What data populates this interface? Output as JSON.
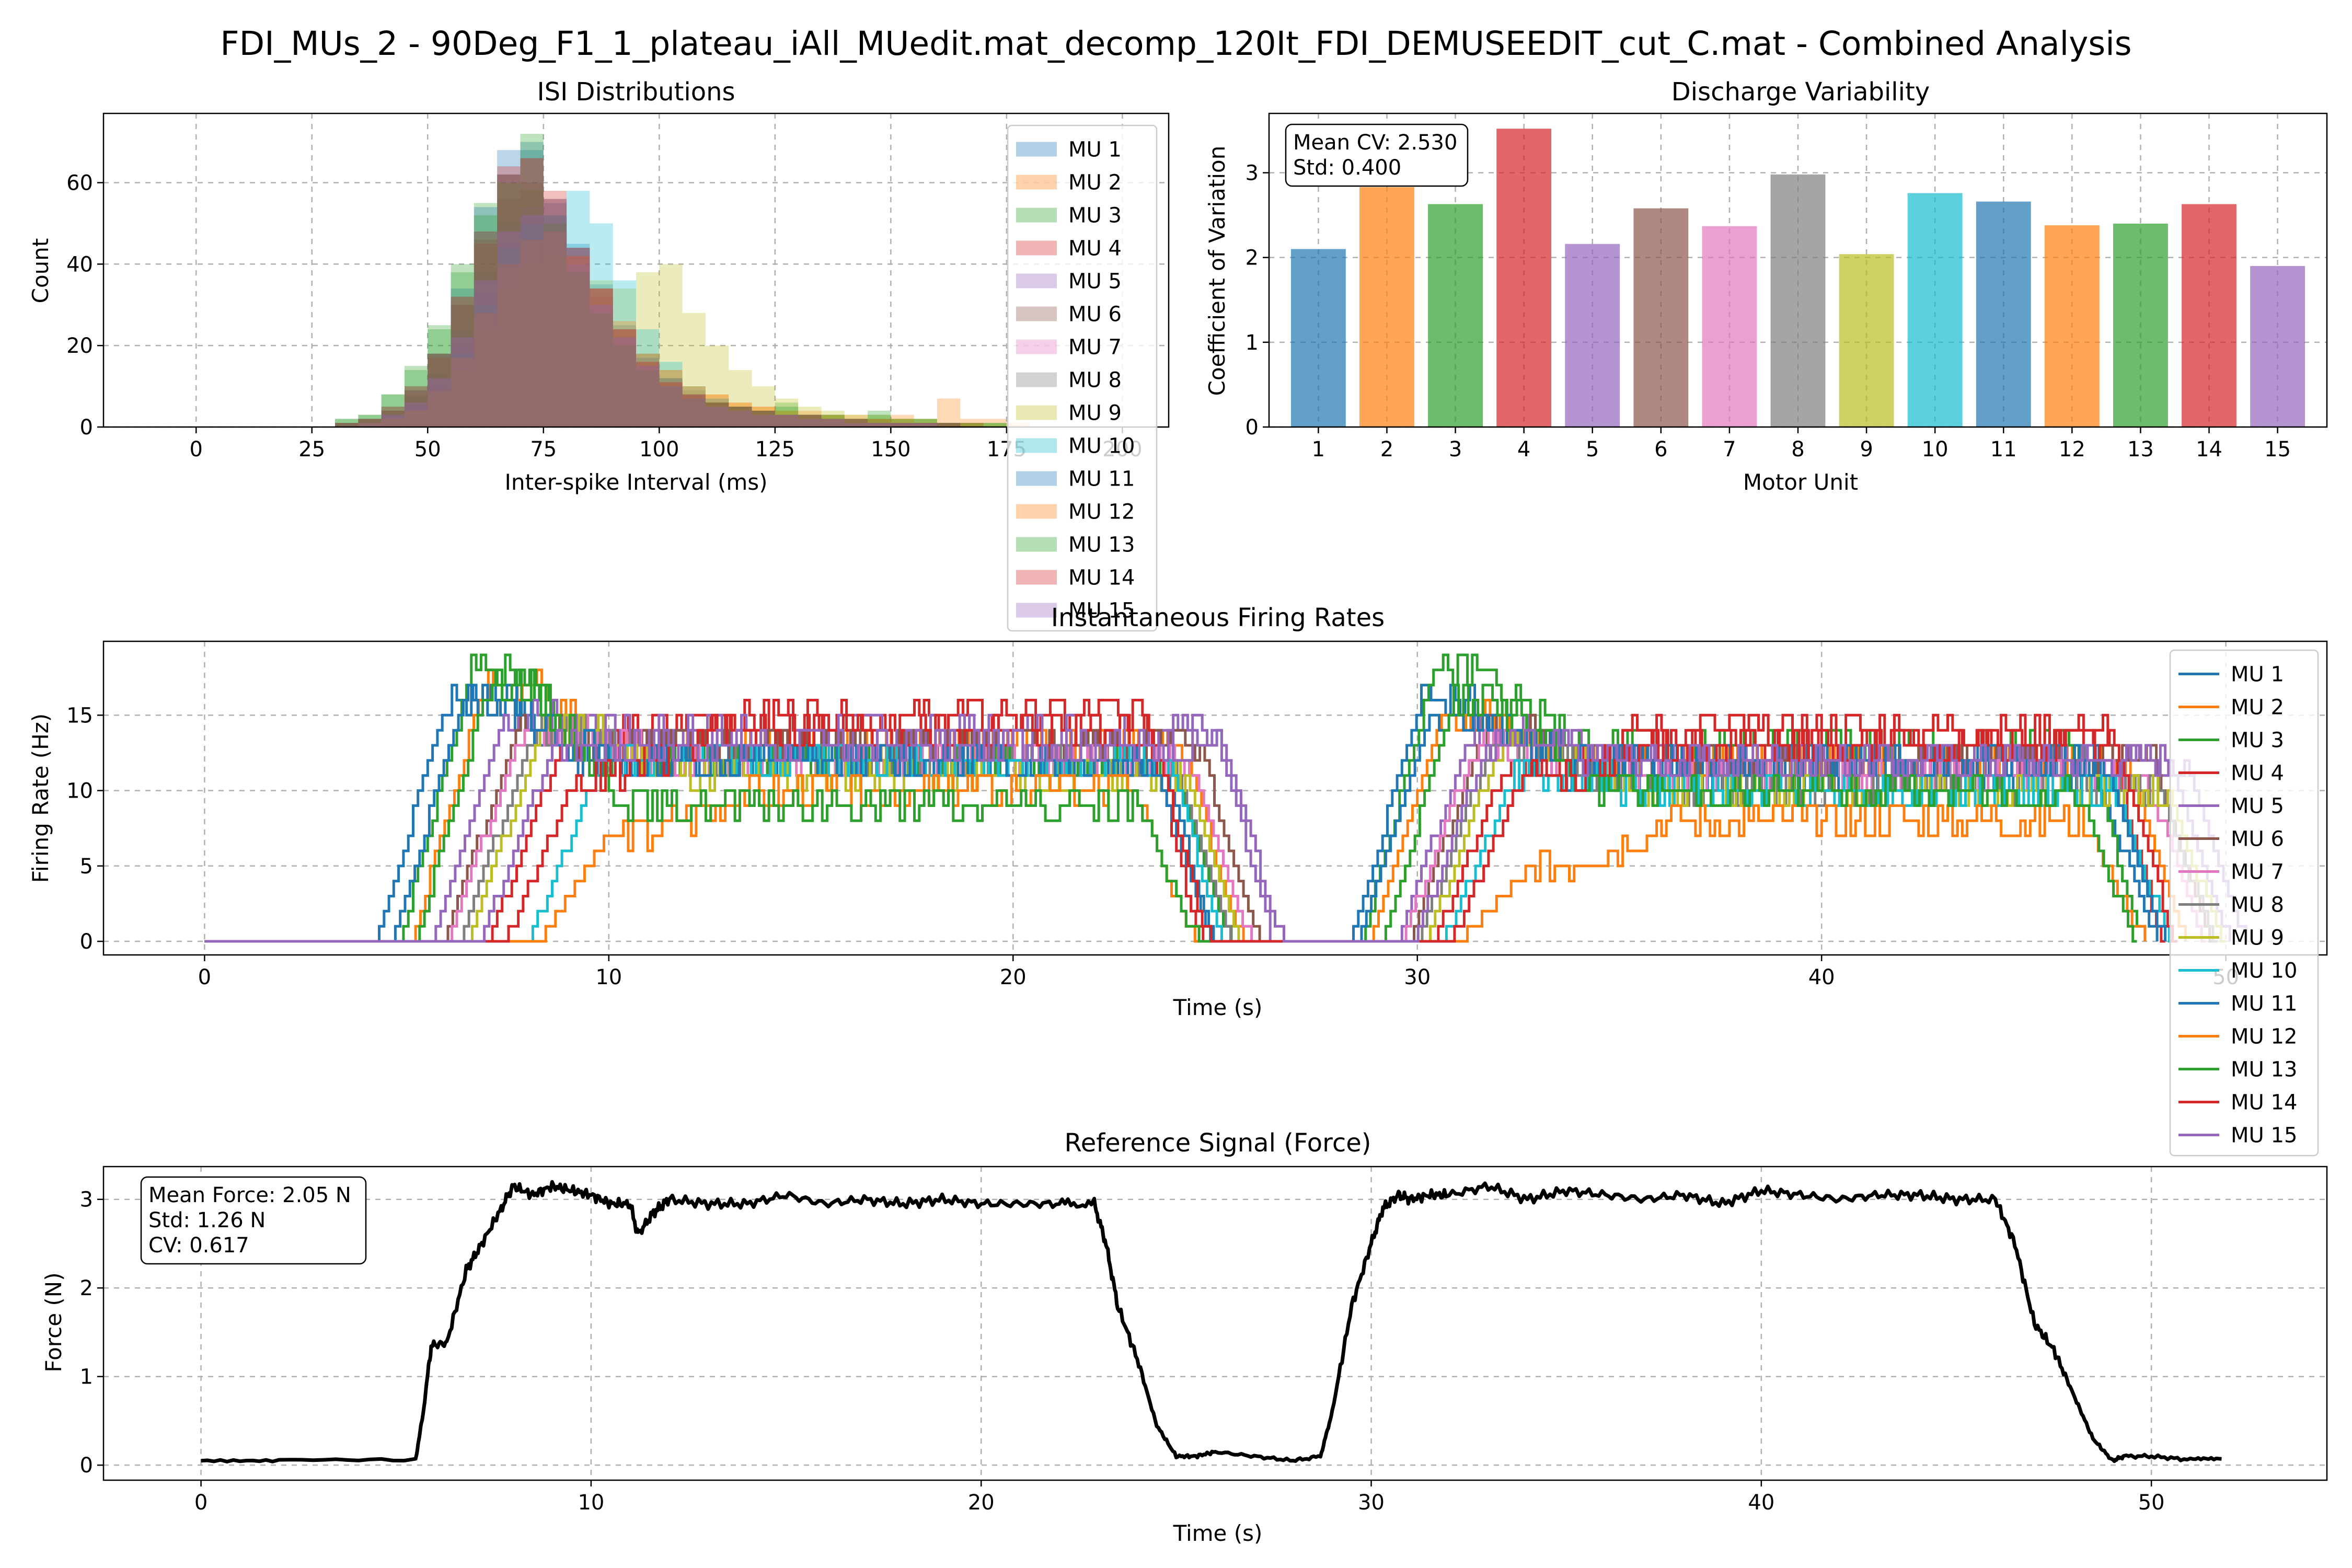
{
  "figure": {
    "suptitle": "FDI_MUs_2 - 90Deg_F1_1_plateau_iAll_MUedit.mat_decomp_120It_FDI_DEMUSEEDIT_cut_C.mat - Combined Analysis"
  },
  "colors": {
    "palette": [
      "#1f77b4",
      "#ff7f0e",
      "#2ca02c",
      "#d62728",
      "#9467bd",
      "#8c564b",
      "#e377c2",
      "#7f7f7f",
      "#bcbd22",
      "#17becf"
    ],
    "force_line": "#000000",
    "grid": "#b0b0b0"
  },
  "chart_data": [
    {
      "id": "isi",
      "type": "histogram",
      "title": "ISI Distributions",
      "xlabel": "Inter-spike Interval (ms)",
      "ylabel": "Count",
      "xlim": [
        -20,
        210
      ],
      "ylim": [
        0,
        77
      ],
      "xticks": [
        0,
        25,
        50,
        75,
        100,
        125,
        150,
        175,
        200
      ],
      "yticks": [
        0,
        20,
        40,
        60
      ],
      "grid": true,
      "legend_position": "upper right",
      "bin_edges": [
        30,
        35,
        40,
        45,
        50,
        55,
        60,
        65,
        70,
        75,
        80,
        85,
        90,
        95,
        100,
        105,
        110,
        115,
        120,
        125,
        130,
        135,
        140,
        145,
        150,
        155,
        160,
        165,
        170,
        175,
        180
      ],
      "series": [
        {
          "name": "MU 1",
          "counts": [
            1,
            2,
            5,
            10,
            18,
            30,
            48,
            62,
            68,
            55,
            45,
            35,
            25,
            18,
            12,
            8,
            6,
            5,
            4,
            3,
            3,
            2,
            2,
            1,
            1,
            1,
            1,
            0,
            0,
            0
          ]
        },
        {
          "name": "MU 2",
          "counts": [
            0,
            1,
            2,
            4,
            8,
            16,
            26,
            38,
            44,
            46,
            40,
            32,
            24,
            18,
            14,
            10,
            8,
            6,
            5,
            4,
            4,
            3,
            3,
            2,
            3,
            2,
            7,
            2,
            2,
            1
          ]
        },
        {
          "name": "MU 3",
          "counts": [
            2,
            3,
            8,
            15,
            25,
            40,
            55,
            62,
            58,
            45,
            35,
            26,
            18,
            13,
            10,
            7,
            6,
            5,
            4,
            6,
            3,
            3,
            2,
            3,
            2,
            2,
            1,
            1,
            1,
            0
          ]
        },
        {
          "name": "MU 4",
          "counts": [
            1,
            2,
            4,
            9,
            17,
            30,
            45,
            62,
            66,
            58,
            44,
            34,
            24,
            16,
            11,
            8,
            6,
            5,
            4,
            3,
            3,
            2,
            2,
            2,
            1,
            1,
            1,
            1,
            0,
            0
          ]
        },
        {
          "name": "MU 5",
          "counts": [
            0,
            1,
            2,
            5,
            10,
            20,
            33,
            45,
            52,
            50,
            42,
            32,
            22,
            15,
            10,
            7,
            5,
            4,
            3,
            3,
            2,
            2,
            1,
            1,
            1,
            1,
            1,
            0,
            0,
            0
          ]
        },
        {
          "name": "MU 6",
          "counts": [
            1,
            2,
            4,
            8,
            18,
            32,
            46,
            56,
            60,
            52,
            42,
            32,
            22,
            15,
            11,
            8,
            6,
            5,
            4,
            3,
            3,
            2,
            2,
            1,
            1,
            1,
            1,
            0,
            0,
            0
          ]
        },
        {
          "name": "MU 7",
          "counts": [
            0,
            1,
            3,
            6,
            12,
            22,
            36,
            48,
            54,
            50,
            42,
            32,
            22,
            15,
            10,
            7,
            5,
            4,
            3,
            3,
            2,
            2,
            2,
            1,
            1,
            1,
            0,
            0,
            0,
            0
          ]
        },
        {
          "name": "MU 8",
          "counts": [
            0,
            1,
            3,
            7,
            13,
            24,
            38,
            50,
            54,
            48,
            40,
            30,
            22,
            16,
            12,
            9,
            7,
            5,
            4,
            3,
            3,
            2,
            2,
            2,
            1,
            1,
            1,
            1,
            0,
            0
          ]
        },
        {
          "name": "MU 9",
          "counts": [
            0,
            1,
            2,
            4,
            8,
            14,
            24,
            34,
            40,
            42,
            40,
            36,
            34,
            38,
            40,
            28,
            20,
            14,
            10,
            7,
            5,
            4,
            3,
            3,
            2,
            2,
            1,
            1,
            1,
            0
          ]
        },
        {
          "name": "MU 10",
          "counts": [
            0,
            1,
            2,
            4,
            9,
            18,
            30,
            44,
            50,
            52,
            58,
            50,
            36,
            24,
            16,
            10,
            7,
            5,
            4,
            3,
            3,
            2,
            2,
            1,
            1,
            1,
            1,
            0,
            0,
            0
          ]
        },
        {
          "name": "MU 11",
          "counts": [
            1,
            2,
            4,
            9,
            18,
            34,
            54,
            68,
            70,
            56,
            44,
            34,
            24,
            17,
            12,
            8,
            6,
            5,
            4,
            3,
            3,
            2,
            2,
            1,
            1,
            1,
            1,
            0,
            0,
            0
          ]
        },
        {
          "name": "MU 12",
          "counts": [
            0,
            1,
            2,
            4,
            9,
            17,
            28,
            40,
            46,
            48,
            42,
            34,
            26,
            18,
            14,
            10,
            8,
            6,
            5,
            4,
            3,
            3,
            2,
            2,
            2,
            1,
            1,
            1,
            0,
            0
          ]
        },
        {
          "name": "MU 13",
          "counts": [
            2,
            3,
            8,
            14,
            24,
            38,
            52,
            60,
            72,
            50,
            38,
            28,
            20,
            14,
            10,
            7,
            6,
            5,
            4,
            5,
            3,
            3,
            2,
            4,
            2,
            2,
            1,
            1,
            1,
            0
          ]
        },
        {
          "name": "MU 14",
          "counts": [
            1,
            2,
            5,
            10,
            18,
            32,
            48,
            64,
            66,
            56,
            44,
            34,
            24,
            16,
            11,
            8,
            6,
            5,
            4,
            3,
            3,
            2,
            2,
            1,
            1,
            1,
            1,
            0,
            0,
            0
          ]
        },
        {
          "name": "MU 15",
          "counts": [
            0,
            1,
            3,
            6,
            12,
            22,
            36,
            48,
            52,
            48,
            40,
            30,
            22,
            15,
            10,
            7,
            5,
            4,
            3,
            3,
            2,
            2,
            1,
            1,
            1,
            1,
            0,
            0,
            0,
            0
          ]
        }
      ]
    },
    {
      "id": "cv",
      "type": "bar",
      "title": "Discharge Variability",
      "xlabel": "Motor Unit",
      "ylabel": "Coefficient of Variation",
      "categories": [
        "1",
        "2",
        "3",
        "4",
        "5",
        "6",
        "7",
        "8",
        "9",
        "10",
        "11",
        "12",
        "13",
        "14",
        "15"
      ],
      "values": [
        2.1,
        2.83,
        2.63,
        3.52,
        2.16,
        2.58,
        2.37,
        2.98,
        2.04,
        2.76,
        2.66,
        2.38,
        2.4,
        2.63,
        1.9
      ],
      "ylim": [
        0,
        3.7
      ],
      "yticks": [
        0,
        1,
        2,
        3
      ],
      "grid": true,
      "annotation": [
        "Mean CV: 2.530",
        "Std: 0.400"
      ]
    },
    {
      "id": "fr",
      "type": "line",
      "title": "Instantaneous Firing Rates",
      "xlabel": "Time (s)",
      "ylabel": "Firing Rate (Hz)",
      "xlim": [
        -2.5,
        52.5
      ],
      "ylim": [
        -0.9,
        19.9
      ],
      "xticks": [
        0,
        10,
        20,
        30,
        40,
        50
      ],
      "yticks": [
        0,
        5,
        10,
        15
      ],
      "grid": true,
      "legend_position": "upper right",
      "shape_note": "two trapezoidal contractions; off ~25-28 s",
      "series": [
        {
          "name": "MU 1",
          "onset1": 4.2,
          "peak1": 16,
          "plateau1": 12,
          "off1": 23.6,
          "onset2": 28.3,
          "peak2": 16,
          "plateau2": 11,
          "off2": 46.8
        },
        {
          "name": "MU 2",
          "onset1": 5.1,
          "peak1": 17,
          "plateau1": 13,
          "off1": 24.2,
          "onset2": 28.8,
          "peak2": 15,
          "plateau2": 12,
          "off2": 47.5
        },
        {
          "name": "MU 3",
          "onset1": 4.8,
          "peak1": 18,
          "plateau1": 12,
          "off1": 23.9,
          "onset2": 28.6,
          "peak2": 18,
          "plateau2": 13,
          "off2": 46.5
        },
        {
          "name": "MU 4",
          "onset1": 7.0,
          "peak1": 13,
          "plateau1": 15,
          "off1": 23.2,
          "onset2": 30.4,
          "peak2": 12,
          "plateau2": 14,
          "off2": 47.0
        },
        {
          "name": "MU 5",
          "onset1": 5.6,
          "peak1": 15,
          "plateau1": 14,
          "off1": 25.0,
          "onset2": 29.5,
          "peak2": 14,
          "plateau2": 12,
          "off2": 48.6
        },
        {
          "name": "MU 6",
          "onset1": 5.9,
          "peak1": 14,
          "plateau1": 13,
          "off1": 24.6,
          "onset2": 29.8,
          "peak2": 14,
          "plateau2": 12,
          "off2": 48.2
        },
        {
          "name": "MU 7",
          "onset1": 6.0,
          "peak1": 14,
          "plateau1": 12,
          "off1": 24.4,
          "onset2": 29.6,
          "peak2": 13,
          "plateau2": 11,
          "off2": 48.0
        },
        {
          "name": "MU 8",
          "onset1": 6.3,
          "peak1": 14,
          "plateau1": 12,
          "off1": 24.0,
          "onset2": 30.0,
          "peak2": 13,
          "plateau2": 10,
          "off2": 48.3
        },
        {
          "name": "MU 9",
          "onset1": 6.5,
          "peak1": 14,
          "plateau1": 11,
          "off1": 24.2,
          "onset2": 30.2,
          "peak2": 13,
          "plateau2": 10,
          "off2": 48.5
        },
        {
          "name": "MU 10",
          "onset1": 8.0,
          "peak1": 12,
          "plateau1": 12,
          "off1": 23.8,
          "onset2": 30.6,
          "peak2": 11,
          "plateau2": 10,
          "off2": 47.2
        },
        {
          "name": "MU 11",
          "onset1": 4.6,
          "peak1": 16,
          "plateau1": 12,
          "off1": 23.5,
          "onset2": 28.5,
          "peak2": 15,
          "plateau2": 12,
          "off2": 47.0
        },
        {
          "name": "MU 12",
          "onset1": 8.2,
          "peak1": 7,
          "plateau1": 10,
          "off1": 23.0,
          "onset2": 31.0,
          "peak2": 5,
          "plateau2": 8,
          "off2": 46.5
        },
        {
          "name": "MU 13",
          "onset1": 5.2,
          "peak1": 17,
          "plateau1": 9,
          "off1": 23.1,
          "onset2": 29.1,
          "peak2": 16,
          "plateau2": 10,
          "off2": 46.3
        },
        {
          "name": "MU 14",
          "onset1": 7.4,
          "peak1": 11,
          "plateau1": 14,
          "off1": 23.4,
          "onset2": 30.8,
          "peak2": 11,
          "plateau2": 13,
          "off2": 47.3
        },
        {
          "name": "MU 15",
          "onset1": 6.8,
          "peak1": 13,
          "plateau1": 13,
          "off1": 25.2,
          "onset2": 29.9,
          "peak2": 13,
          "plateau2": 12,
          "off2": 49.0
        }
      ]
    },
    {
      "id": "force",
      "type": "line",
      "title": "Reference Signal (Force)",
      "xlabel": "Time (s)",
      "ylabel": "Force (N)",
      "xlim": [
        -2.5,
        54.5
      ],
      "ylim": [
        -0.17,
        3.37
      ],
      "xticks": [
        0,
        10,
        20,
        30,
        40,
        50
      ],
      "yticks": [
        0,
        1,
        2,
        3
      ],
      "grid": true,
      "annotation": [
        "Mean Force: 2.05 N",
        "Std: 1.26 N",
        "CV: 0.617"
      ],
      "series": [
        {
          "name": "Force",
          "x": [
            0,
            2,
            5.5,
            5.7,
            5.9,
            6.3,
            6.8,
            7.2,
            7.7,
            8.0,
            8.5,
            9,
            9.5,
            10,
            10.5,
            11,
            11.2,
            11.6,
            12,
            13,
            14,
            15,
            16,
            17,
            18,
            19,
            20,
            21,
            22,
            22.9,
            23.2,
            23.5,
            24,
            24.5,
            25,
            25.5,
            26,
            27,
            28,
            28.7,
            29,
            29.5,
            30,
            30.3,
            30.7,
            31,
            31.5,
            32,
            33,
            34,
            35,
            36,
            37,
            38,
            39,
            40,
            41,
            42,
            43,
            44,
            45,
            46,
            46.5,
            47,
            47.5,
            48,
            48.5,
            49,
            49.3,
            50,
            51,
            51.8
          ],
          "y": [
            0.05,
            0.06,
            0.06,
            0.6,
            1.35,
            1.38,
            2.2,
            2.5,
            2.9,
            3.15,
            3.05,
            3.15,
            3.1,
            3.05,
            2.95,
            2.95,
            2.6,
            2.85,
            3.0,
            2.95,
            2.95,
            3.05,
            2.95,
            3.0,
            2.95,
            3.0,
            2.95,
            2.95,
            2.95,
            2.95,
            2.5,
            1.8,
            1.2,
            0.45,
            0.1,
            0.1,
            0.15,
            0.1,
            0.05,
            0.1,
            0.6,
            1.8,
            2.5,
            2.9,
            3.05,
            3.0,
            3.05,
            3.05,
            3.15,
            3.0,
            3.1,
            3.05,
            3.0,
            3.05,
            2.95,
            3.1,
            3.05,
            3.0,
            3.05,
            3.05,
            3.0,
            3.0,
            2.5,
            1.6,
            1.3,
            0.8,
            0.3,
            0.05,
            0.1,
            0.1,
            0.06,
            0.07
          ]
        }
      ]
    }
  ]
}
